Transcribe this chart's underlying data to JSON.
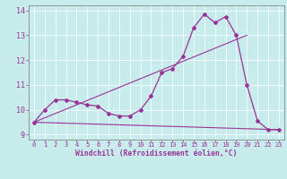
{
  "xlabel": "Windchill (Refroidissement éolien,°C)",
  "bg_color": "#c8ecec",
  "line_color": "#993399",
  "grid_color": "#ffffff",
  "spine_color": "#888888",
  "xlim": [
    -0.5,
    23.5
  ],
  "ylim": [
    8.8,
    14.2
  ],
  "yticks": [
    9,
    10,
    11,
    12,
    13,
    14
  ],
  "xticks": [
    0,
    1,
    2,
    3,
    4,
    5,
    6,
    7,
    8,
    9,
    10,
    11,
    12,
    13,
    14,
    15,
    16,
    17,
    18,
    19,
    20,
    21,
    22,
    23
  ],
  "series1_x": [
    0,
    1,
    2,
    3,
    4,
    5,
    6,
    7,
    8,
    9,
    10,
    11,
    12,
    13,
    14,
    15,
    16,
    17,
    18,
    19,
    20,
    21,
    22,
    23
  ],
  "series1_y": [
    9.5,
    10.0,
    10.4,
    10.4,
    10.3,
    10.2,
    10.15,
    9.85,
    9.75,
    9.75,
    10.0,
    10.55,
    11.5,
    11.65,
    12.15,
    13.3,
    13.85,
    13.5,
    13.75,
    13.0,
    11.0,
    9.55,
    9.2,
    9.2
  ],
  "series2_x": [
    0,
    23
  ],
  "series2_y": [
    9.5,
    9.2
  ],
  "series3_x": [
    0,
    20
  ],
  "series3_y": [
    9.5,
    13.0
  ],
  "xtick_fontsize": 5.0,
  "ytick_fontsize": 6.0,
  "xlabel_fontsize": 5.8
}
